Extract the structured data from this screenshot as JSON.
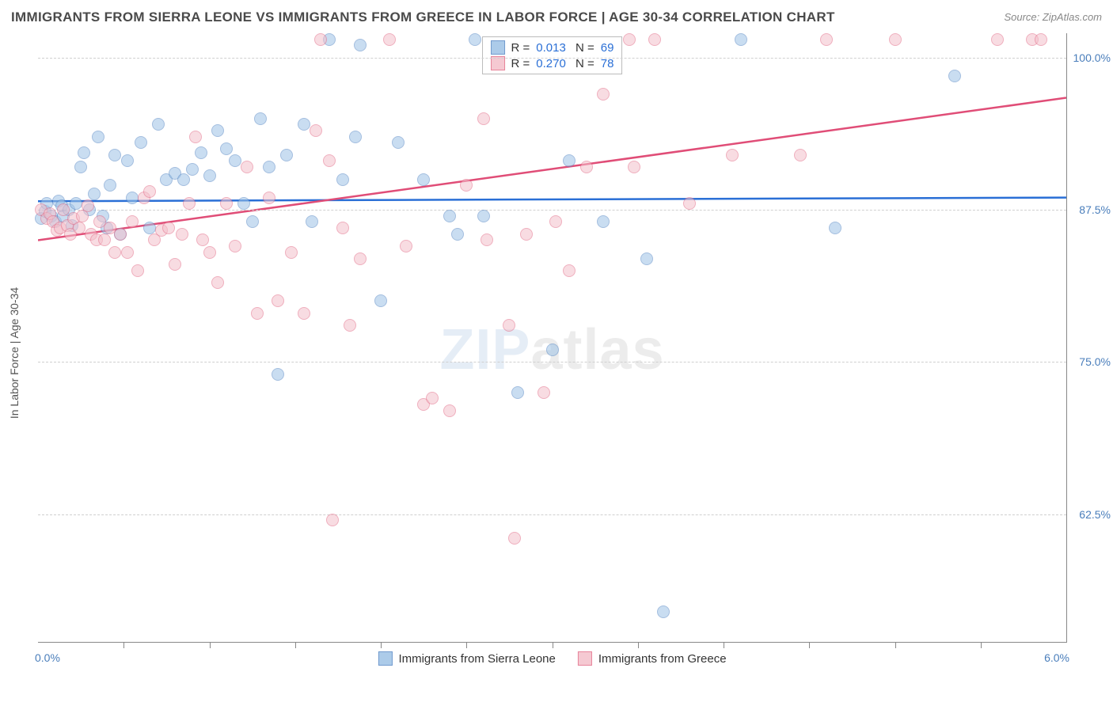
{
  "title": "IMMIGRANTS FROM SIERRA LEONE VS IMMIGRANTS FROM GREECE IN LABOR FORCE | AGE 30-34 CORRELATION CHART",
  "source": "Source: ZipAtlas.com",
  "ylabel": "In Labor Force | Age 30-34",
  "watermark_a": "ZIP",
  "watermark_b": "atlas",
  "chart": {
    "type": "scatter",
    "xlim": [
      0.0,
      6.0
    ],
    "ylim": [
      52.0,
      102.0
    ],
    "xlim_labels": [
      "0.0%",
      "6.0%"
    ],
    "yticks": [
      62.5,
      75.0,
      87.5,
      100.0
    ],
    "ytick_labels": [
      "62.5%",
      "75.0%",
      "87.5%",
      "100.0%"
    ],
    "xtick_positions": [
      0.5,
      1.0,
      1.5,
      2.0,
      2.5,
      3.0,
      3.5,
      4.0,
      4.5,
      5.0,
      5.5
    ],
    "background_color": "#ffffff",
    "grid_color": "#d0d0d0",
    "marker_radius": 8,
    "marker_opacity": 0.55,
    "series": [
      {
        "name": "Immigrants from Sierra Leone",
        "color_fill": "#9ec3e6",
        "color_stroke": "#5a8ac6",
        "trend_color": "#2a6fd6",
        "trend_width": 2.5,
        "R": "0.013",
        "N": "69",
        "trend": {
          "x0": 0.0,
          "y0": 88.2,
          "x1": 6.0,
          "y1": 88.5
        },
        "points": [
          [
            0.02,
            86.8
          ],
          [
            0.04,
            87.4
          ],
          [
            0.05,
            88.0
          ],
          [
            0.08,
            87.0
          ],
          [
            0.1,
            86.5
          ],
          [
            0.12,
            88.2
          ],
          [
            0.14,
            87.8
          ],
          [
            0.15,
            87.0
          ],
          [
            0.18,
            87.5
          ],
          [
            0.2,
            86.2
          ],
          [
            0.22,
            88.0
          ],
          [
            0.25,
            91.0
          ],
          [
            0.27,
            92.2
          ],
          [
            0.3,
            87.5
          ],
          [
            0.33,
            88.8
          ],
          [
            0.35,
            93.5
          ],
          [
            0.38,
            87.0
          ],
          [
            0.4,
            86.0
          ],
          [
            0.42,
            89.5
          ],
          [
            0.45,
            92.0
          ],
          [
            0.48,
            85.5
          ],
          [
            0.52,
            91.5
          ],
          [
            0.55,
            88.5
          ],
          [
            0.6,
            93.0
          ],
          [
            0.65,
            86.0
          ],
          [
            0.7,
            94.5
          ],
          [
            0.75,
            90.0
          ],
          [
            0.8,
            90.5
          ],
          [
            0.85,
            90.0
          ],
          [
            0.9,
            90.8
          ],
          [
            0.95,
            92.2
          ],
          [
            1.0,
            90.3
          ],
          [
            1.05,
            94.0
          ],
          [
            1.1,
            92.5
          ],
          [
            1.15,
            91.5
          ],
          [
            1.2,
            88.0
          ],
          [
            1.25,
            86.5
          ],
          [
            1.3,
            95.0
          ],
          [
            1.35,
            91.0
          ],
          [
            1.4,
            74.0
          ],
          [
            1.45,
            92.0
          ],
          [
            1.55,
            94.5
          ],
          [
            1.6,
            86.5
          ],
          [
            1.7,
            101.5
          ],
          [
            1.78,
            90.0
          ],
          [
            1.85,
            93.5
          ],
          [
            1.88,
            101.0
          ],
          [
            2.0,
            80.0
          ],
          [
            2.1,
            93.0
          ],
          [
            2.25,
            90.0
          ],
          [
            2.4,
            87.0
          ],
          [
            2.45,
            85.5
          ],
          [
            2.55,
            101.5
          ],
          [
            2.6,
            87.0
          ],
          [
            2.8,
            72.5
          ],
          [
            3.0,
            76.0
          ],
          [
            3.1,
            91.5
          ],
          [
            3.3,
            86.5
          ],
          [
            3.55,
            83.5
          ],
          [
            3.65,
            54.5
          ],
          [
            4.1,
            101.5
          ],
          [
            4.65,
            86.0
          ],
          [
            5.35,
            98.5
          ]
        ]
      },
      {
        "name": "Immigrants from Greece",
        "color_fill": "#f4c0cb",
        "color_stroke": "#e36f8a",
        "trend_color": "#e04d77",
        "trend_width": 2.5,
        "R": "0.270",
        "N": "78",
        "trend": {
          "x0": 0.0,
          "y0": 85.0,
          "x1": 6.0,
          "y1": 96.7
        },
        "points": [
          [
            0.02,
            87.5
          ],
          [
            0.05,
            86.8
          ],
          [
            0.07,
            87.2
          ],
          [
            0.09,
            86.5
          ],
          [
            0.11,
            85.8
          ],
          [
            0.13,
            86.0
          ],
          [
            0.15,
            87.5
          ],
          [
            0.17,
            86.2
          ],
          [
            0.19,
            85.5
          ],
          [
            0.21,
            86.8
          ],
          [
            0.24,
            86.0
          ],
          [
            0.26,
            87.0
          ],
          [
            0.29,
            87.8
          ],
          [
            0.31,
            85.5
          ],
          [
            0.34,
            85.0
          ],
          [
            0.36,
            86.5
          ],
          [
            0.39,
            85.0
          ],
          [
            0.42,
            86.0
          ],
          [
            0.45,
            84.0
          ],
          [
            0.48,
            85.5
          ],
          [
            0.52,
            84.0
          ],
          [
            0.55,
            86.5
          ],
          [
            0.58,
            82.5
          ],
          [
            0.62,
            88.5
          ],
          [
            0.65,
            89.0
          ],
          [
            0.68,
            85.0
          ],
          [
            0.72,
            85.8
          ],
          [
            0.76,
            86.0
          ],
          [
            0.8,
            83.0
          ],
          [
            0.84,
            85.5
          ],
          [
            0.88,
            88.0
          ],
          [
            0.92,
            93.5
          ],
          [
            0.96,
            85.0
          ],
          [
            1.0,
            84.0
          ],
          [
            1.05,
            81.5
          ],
          [
            1.1,
            88.0
          ],
          [
            1.15,
            84.5
          ],
          [
            1.22,
            91.0
          ],
          [
            1.28,
            79.0
          ],
          [
            1.35,
            88.5
          ],
          [
            1.4,
            80.0
          ],
          [
            1.48,
            84.0
          ],
          [
            1.55,
            79.0
          ],
          [
            1.62,
            94.0
          ],
          [
            1.65,
            101.5
          ],
          [
            1.7,
            91.5
          ],
          [
            1.72,
            62.0
          ],
          [
            1.78,
            86.0
          ],
          [
            1.82,
            78.0
          ],
          [
            1.88,
            83.5
          ],
          [
            2.05,
            101.5
          ],
          [
            2.15,
            84.5
          ],
          [
            2.25,
            71.5
          ],
          [
            2.3,
            72.0
          ],
          [
            2.4,
            71.0
          ],
          [
            2.5,
            89.5
          ],
          [
            2.6,
            95.0
          ],
          [
            2.62,
            85.0
          ],
          [
            2.75,
            78.0
          ],
          [
            2.78,
            60.5
          ],
          [
            2.85,
            85.5
          ],
          [
            2.95,
            72.5
          ],
          [
            3.02,
            86.5
          ],
          [
            3.1,
            82.5
          ],
          [
            3.2,
            91.0
          ],
          [
            3.3,
            97.0
          ],
          [
            3.45,
            101.5
          ],
          [
            3.48,
            91.0
          ],
          [
            3.6,
            101.5
          ],
          [
            3.8,
            88.0
          ],
          [
            4.05,
            92.0
          ],
          [
            4.45,
            92.0
          ],
          [
            4.6,
            101.5
          ],
          [
            5.0,
            101.5
          ],
          [
            5.6,
            101.5
          ],
          [
            5.8,
            101.5
          ],
          [
            5.85,
            101.5
          ]
        ]
      }
    ]
  }
}
